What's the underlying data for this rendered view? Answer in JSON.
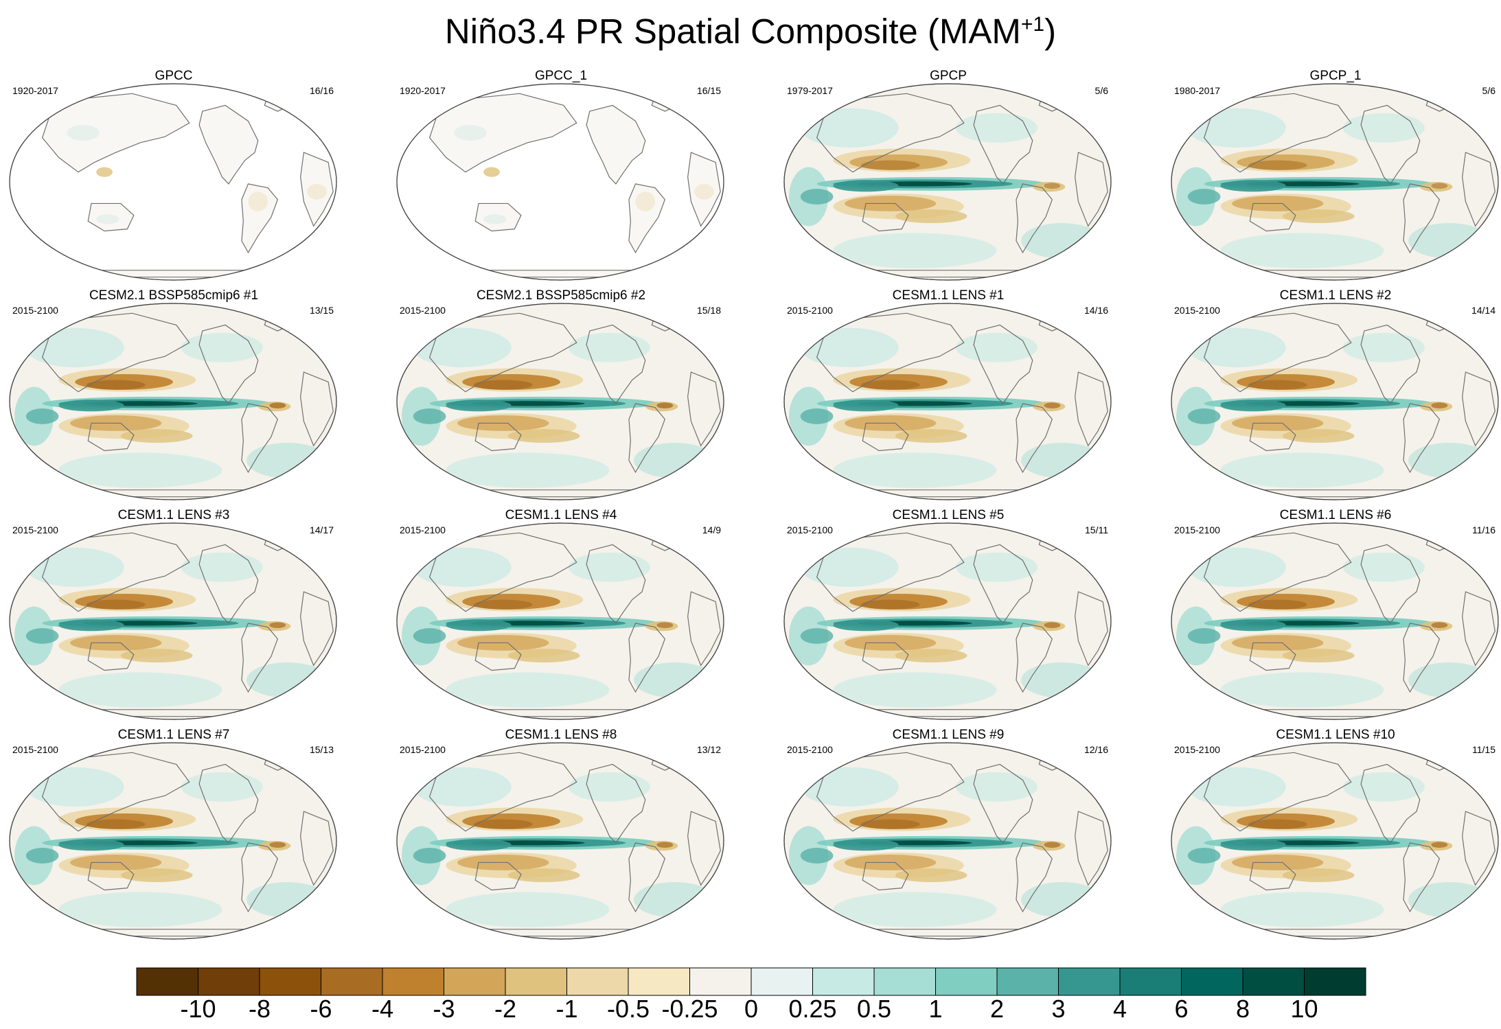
{
  "title": {
    "text": "Niño3.4 PR Spatial Composite (MAM",
    "sup": "+1",
    "close": ")"
  },
  "colors": {
    "levels": [
      "#543005",
      "#6f3e09",
      "#8c510a",
      "#a86c23",
      "#bf812d",
      "#d2a559",
      "#dfc27d",
      "#ecd8a8",
      "#f6e8c3",
      "#f5f2eb",
      "#e8f3f1",
      "#c7eae5",
      "#a6ddd5",
      "#80cdc1",
      "#5ab2a8",
      "#35978f",
      "#1a7e76",
      "#01665e",
      "#004d41",
      "#003c30"
    ],
    "coast": "#707070"
  },
  "colorbar": {
    "labels": [
      "-10",
      "-8",
      "-6",
      "-4",
      "-3",
      "-2",
      "-1",
      "-0.5",
      "-0.25",
      "0",
      "0.25",
      "0.5",
      "1",
      "2",
      "3",
      "4",
      "6",
      "8",
      "10"
    ]
  },
  "panels": [
    {
      "title": "GPCC",
      "years": "1920-2017",
      "count": "16/16",
      "coverage": "land",
      "strength": 0.35
    },
    {
      "title": "GPCC_1",
      "years": "1920-2017",
      "count": "16/15",
      "coverage": "land",
      "strength": 0.35
    },
    {
      "title": "GPCP",
      "years": "1979-2017",
      "count": "5/6",
      "coverage": "global",
      "strength": 0.7
    },
    {
      "title": "GPCP_1",
      "years": "1980-2017",
      "count": "5/6",
      "coverage": "global",
      "strength": 0.7
    },
    {
      "title": "CESM2.1 BSSP585cmip6 #1",
      "years": "2015-2100",
      "count": "13/15",
      "coverage": "global",
      "strength": 1.0
    },
    {
      "title": "CESM2.1 BSSP585cmip6 #2",
      "years": "2015-2100",
      "count": "15/18",
      "coverage": "global",
      "strength": 1.0
    },
    {
      "title": "CESM1.1 LENS #1",
      "years": "2015-2100",
      "count": "14/16",
      "coverage": "global",
      "strength": 0.9
    },
    {
      "title": "CESM1.1 LENS #2",
      "years": "2015-2100",
      "count": "14/14",
      "coverage": "global",
      "strength": 0.9
    },
    {
      "title": "CESM1.1 LENS #3",
      "years": "2015-2100",
      "count": "14/17",
      "coverage": "global",
      "strength": 0.9
    },
    {
      "title": "CESM1.1 LENS #4",
      "years": "2015-2100",
      "count": "14/9",
      "coverage": "global",
      "strength": 0.85
    },
    {
      "title": "CESM1.1 LENS #5",
      "years": "2015-2100",
      "count": "15/11",
      "coverage": "global",
      "strength": 0.9
    },
    {
      "title": "CESM1.1 LENS #6",
      "years": "2015-2100",
      "count": "11/16",
      "coverage": "global",
      "strength": 0.9
    },
    {
      "title": "CESM1.1 LENS #7",
      "years": "2015-2100",
      "count": "15/13",
      "coverage": "global",
      "strength": 0.9
    },
    {
      "title": "CESM1.1 LENS #8",
      "years": "2015-2100",
      "count": "13/12",
      "coverage": "global",
      "strength": 0.9
    },
    {
      "title": "CESM1.1 LENS #9",
      "years": "2015-2100",
      "count": "12/16",
      "coverage": "global",
      "strength": 0.9
    },
    {
      "title": "CESM1.1 LENS #10",
      "years": "2015-2100",
      "count": "11/15",
      "coverage": "global",
      "strength": 0.9
    }
  ]
}
